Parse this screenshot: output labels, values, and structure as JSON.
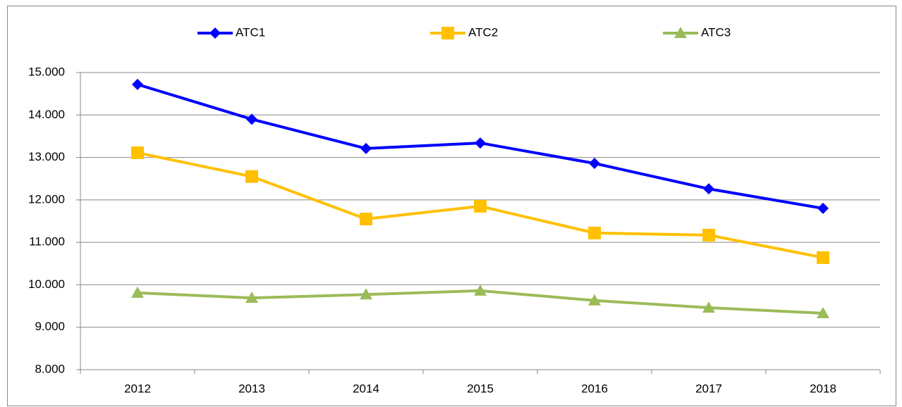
{
  "chart_data": {
    "type": "line",
    "categories": [
      "2012",
      "2013",
      "2014",
      "2015",
      "2016",
      "2017",
      "2018"
    ],
    "series": [
      {
        "name": "ATC1",
        "color": "#0000ff",
        "marker": "diamond",
        "values": [
          14720,
          13900,
          13210,
          13340,
          12860,
          12260,
          11800
        ]
      },
      {
        "name": "ATC2",
        "color": "#ffc000",
        "marker": "square",
        "values": [
          13110,
          12550,
          11550,
          11850,
          11220,
          11170,
          10640
        ]
      },
      {
        "name": "ATC3",
        "color": "#9bbb59",
        "marker": "triangle",
        "values": [
          9810,
          9690,
          9770,
          9860,
          9630,
          9460,
          9330
        ]
      }
    ],
    "ylim": [
      8000,
      15000
    ],
    "yticks": [
      {
        "value": 8000,
        "label": "8.000"
      },
      {
        "value": 9000,
        "label": "9.000"
      },
      {
        "value": 10000,
        "label": "10.000"
      },
      {
        "value": 11000,
        "label": "11.000"
      },
      {
        "value": 12000,
        "label": "12.000"
      },
      {
        "value": 13000,
        "label": "13.000"
      },
      {
        "value": 14000,
        "label": "14.000"
      },
      {
        "value": 15000,
        "label": "15.000"
      }
    ],
    "grid": true,
    "legend": "top"
  }
}
